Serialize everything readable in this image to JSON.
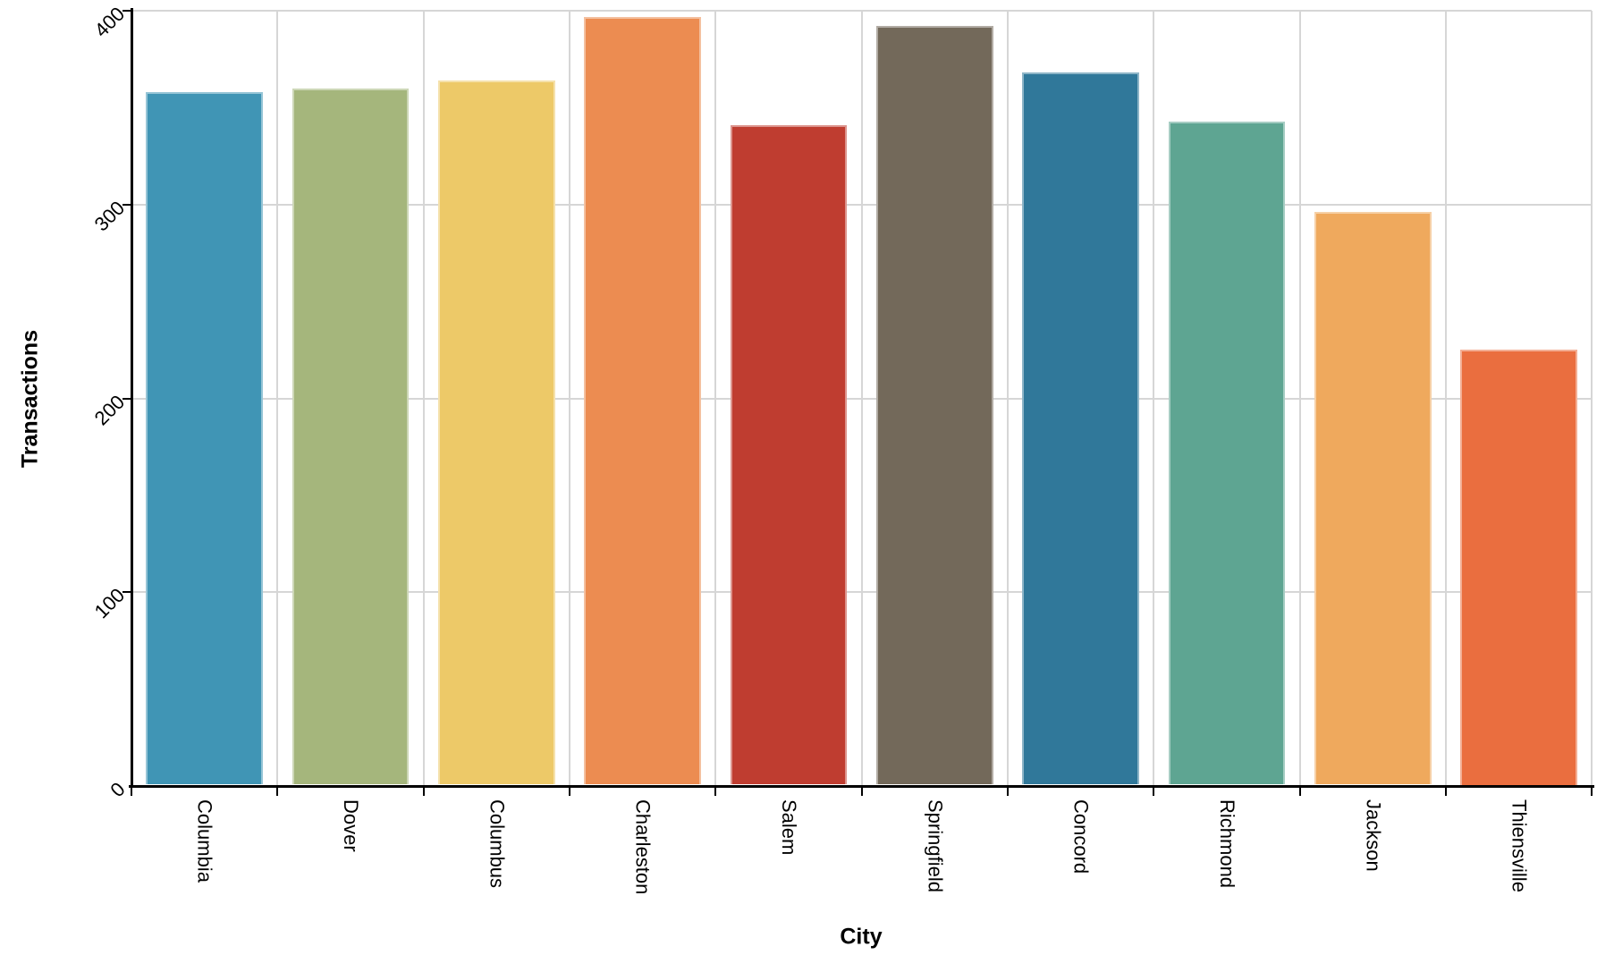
{
  "chart_data": {
    "type": "bar",
    "title": "",
    "xlabel": "City",
    "ylabel": "Transactions",
    "categories": [
      "Columbia",
      "Dover",
      "Columbus",
      "Charleston",
      "Salem",
      "Springfield",
      "Concord",
      "Richmond",
      "Jackson",
      "Thiensville"
    ],
    "values": [
      358,
      360,
      364,
      397,
      341,
      392,
      368,
      343,
      296,
      225
    ],
    "bar_colors": [
      "#4095b5",
      "#a5b67c",
      "#edc968",
      "#ec8c51",
      "#bf3d30",
      "#73695a",
      "#30789a",
      "#5ea592",
      "#efa95d",
      "#ea6e3f"
    ],
    "yticks": [
      0,
      100,
      200,
      300,
      400
    ],
    "ylim": [
      0,
      400
    ],
    "grid": true,
    "legend": false,
    "layout_hints": {
      "x_tick_label_rotation_deg": 90,
      "y_tick_label_rotation_deg": 45,
      "grid_color": "#d6d6d6",
      "axis_color": "#000000",
      "background_color": "#ffffff",
      "bar_fraction_of_slot": 0.8
    }
  }
}
